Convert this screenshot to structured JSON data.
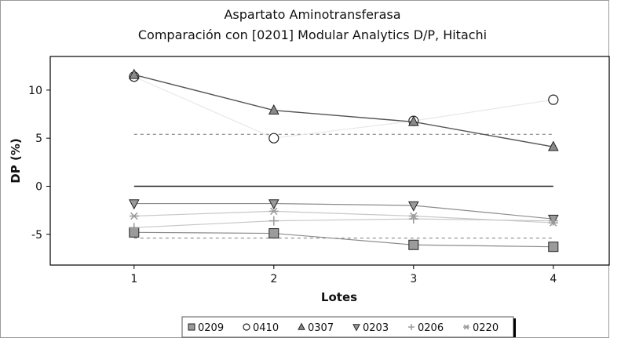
{
  "chart_data": {
    "type": "line",
    "title": "Aspartato Aminotransferasa",
    "subtitle": "Comparación con [0201] Modular Analytics D/P, Hitachi",
    "xlabel": "Lotes",
    "ylabel": "DP (%)",
    "x": [
      1,
      2,
      3,
      4
    ],
    "xticks": [
      "1",
      "2",
      "3",
      "4"
    ],
    "yticks": [
      "10",
      "5",
      "0",
      "-5"
    ],
    "ytick_values": [
      10,
      5,
      0,
      -5
    ],
    "xlim": [
      0.4,
      4.4
    ],
    "ylim": [
      -8.2,
      13.5
    ],
    "grid": false,
    "legend_position": "bottom",
    "reference_lines": [
      {
        "y": 0,
        "style": "solid"
      },
      {
        "y": 5.4,
        "style": "dashed"
      },
      {
        "y": -5.4,
        "style": "dashed"
      }
    ],
    "series": [
      {
        "name": "0209",
        "marker": "square",
        "color": "#8c8c8c",
        "values": [
          -4.8,
          -4.9,
          -6.1,
          -6.3
        ]
      },
      {
        "name": "0410",
        "marker": "circle",
        "color": "#e8e8e8",
        "values": [
          11.4,
          5.0,
          6.8,
          9.0
        ]
      },
      {
        "name": "0307",
        "marker": "triangle-up",
        "color": "#555555",
        "values": [
          11.6,
          7.9,
          6.7,
          4.1
        ]
      },
      {
        "name": "0203",
        "marker": "triangle-down",
        "color": "#8c8c8c",
        "values": [
          -1.8,
          -1.8,
          -2.0,
          -3.4
        ]
      },
      {
        "name": "0206",
        "marker": "plus",
        "color": "#c8c8c8",
        "values": [
          -4.3,
          -3.6,
          -3.4,
          -3.6
        ]
      },
      {
        "name": "0220",
        "marker": "asterisk",
        "color": "#c8c8c8",
        "values": [
          -3.1,
          -2.6,
          -3.1,
          -3.8
        ]
      }
    ]
  }
}
